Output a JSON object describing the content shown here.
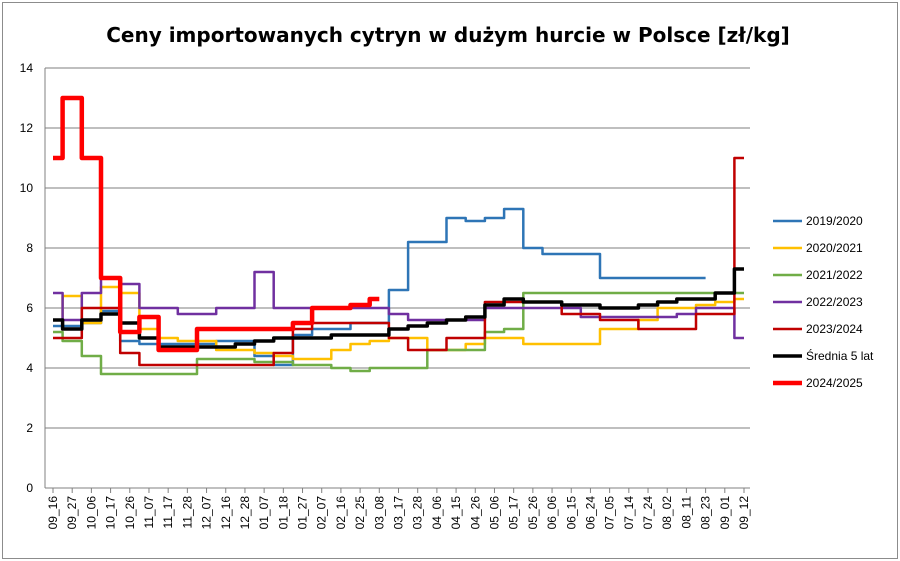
{
  "chart_data": {
    "type": "line",
    "title": "Ceny importowanych cytryn w dużym hurcie w Polsce [zł/kg]",
    "xlabel": "",
    "ylabel": "",
    "ylim": [
      0,
      14
    ],
    "yticks": [
      0,
      2,
      4,
      6,
      8,
      10,
      12,
      14
    ],
    "grid": "horizontal",
    "legend_position": "right",
    "x": [
      "09_16",
      "09_27",
      "10_06",
      "10_17",
      "10_26",
      "11_07",
      "11_17",
      "11_28",
      "12_07",
      "12_16",
      "12_28",
      "01_07",
      "01_18",
      "01_27",
      "02_07",
      "02_16",
      "02_25",
      "03_08",
      "03_17",
      "03_28",
      "04_06",
      "04_15",
      "04_26",
      "05_06",
      "05_17",
      "05_26",
      "06_06",
      "06_15",
      "06_24",
      "07_05",
      "07_14",
      "07_24",
      "08_02",
      "08_11",
      "08_23",
      "09_01",
      "09_12"
    ],
    "series": [
      {
        "name": "2019/2020",
        "color": "#2e75b6",
        "width": 2.5,
        "values": [
          5.4,
          5.4,
          5.5,
          5.9,
          4.9,
          4.8,
          4.8,
          4.8,
          4.8,
          4.9,
          4.9,
          4.4,
          4.1,
          5.1,
          5.3,
          5.3,
          5.5,
          5.5,
          6.6,
          8.2,
          8.2,
          9.0,
          8.9,
          9.0,
          9.3,
          8.0,
          7.8,
          7.8,
          7.8,
          7.0,
          7.0,
          7.0,
          7.0,
          7.0,
          7.0,
          null,
          null
        ]
      },
      {
        "name": "2020/2021",
        "color": "#ffc000",
        "width": 2.5,
        "values": [
          5.6,
          6.4,
          5.5,
          6.7,
          6.5,
          5.3,
          5.0,
          4.9,
          4.9,
          4.6,
          4.6,
          4.5,
          4.4,
          4.3,
          4.3,
          4.6,
          4.8,
          4.9,
          5.0,
          5.0,
          4.6,
          4.6,
          4.8,
          5.0,
          5.0,
          4.8,
          4.8,
          4.8,
          4.8,
          5.3,
          5.3,
          5.6,
          6.0,
          6.0,
          6.1,
          6.2,
          6.3
        ]
      },
      {
        "name": "2021/2022",
        "color": "#70ad47",
        "width": 2.5,
        "values": [
          5.2,
          4.9,
          4.4,
          3.8,
          3.8,
          3.8,
          3.8,
          3.8,
          4.3,
          4.3,
          4.3,
          4.2,
          4.2,
          4.1,
          4.1,
          4.0,
          3.9,
          4.0,
          4.0,
          4.0,
          4.6,
          4.6,
          4.6,
          5.2,
          5.3,
          6.5,
          6.5,
          6.5,
          6.5,
          6.5,
          6.5,
          6.5,
          6.5,
          6.5,
          6.5,
          6.5,
          6.5
        ]
      },
      {
        "name": "2022/2023",
        "color": "#7030a0",
        "width": 2.5,
        "values": [
          6.5,
          5.6,
          6.5,
          7.0,
          6.8,
          6.0,
          6.0,
          5.8,
          5.8,
          6.0,
          6.0,
          7.2,
          6.0,
          6.0,
          6.0,
          6.0,
          6.0,
          6.0,
          5.8,
          5.6,
          5.6,
          5.6,
          5.6,
          6.0,
          6.0,
          6.0,
          6.0,
          6.0,
          5.7,
          5.7,
          5.7,
          5.7,
          5.7,
          5.8,
          6.0,
          6.0,
          5.0
        ]
      },
      {
        "name": "2023/2024",
        "color": "#c00000",
        "width": 2.5,
        "values": [
          5.0,
          5.0,
          6.0,
          6.0,
          4.5,
          4.1,
          4.1,
          4.1,
          4.1,
          4.1,
          4.1,
          4.1,
          4.5,
          5.3,
          5.5,
          5.5,
          5.5,
          5.5,
          5.0,
          4.6,
          4.6,
          5.0,
          5.0,
          6.2,
          6.2,
          6.2,
          6.2,
          5.8,
          5.8,
          5.6,
          5.6,
          5.3,
          5.3,
          5.3,
          5.8,
          5.8,
          11.0
        ]
      },
      {
        "name": "Średnia 5 lat",
        "color": "#000000",
        "width": 3.5,
        "values": [
          5.6,
          5.3,
          5.6,
          5.8,
          5.5,
          5.0,
          4.7,
          4.7,
          4.7,
          4.7,
          4.8,
          4.9,
          5.0,
          5.0,
          5.0,
          5.1,
          5.1,
          5.1,
          5.3,
          5.4,
          5.5,
          5.6,
          5.7,
          6.1,
          6.3,
          6.2,
          6.2,
          6.1,
          6.1,
          6.0,
          6.0,
          6.1,
          6.2,
          6.3,
          6.3,
          6.5,
          7.3
        ]
      },
      {
        "name": "2024/2025",
        "color": "#ff0000",
        "width": 4.5,
        "values": [
          11.0,
          13.0,
          11.0,
          7.0,
          5.2,
          5.7,
          4.6,
          4.6,
          5.3,
          5.3,
          5.3,
          5.3,
          5.3,
          5.5,
          6.0,
          6.0,
          6.1,
          6.3,
          null,
          null,
          null,
          null,
          null,
          null,
          null,
          null,
          null,
          null,
          null,
          null,
          null,
          null,
          null,
          null,
          null,
          null,
          null
        ]
      }
    ]
  }
}
